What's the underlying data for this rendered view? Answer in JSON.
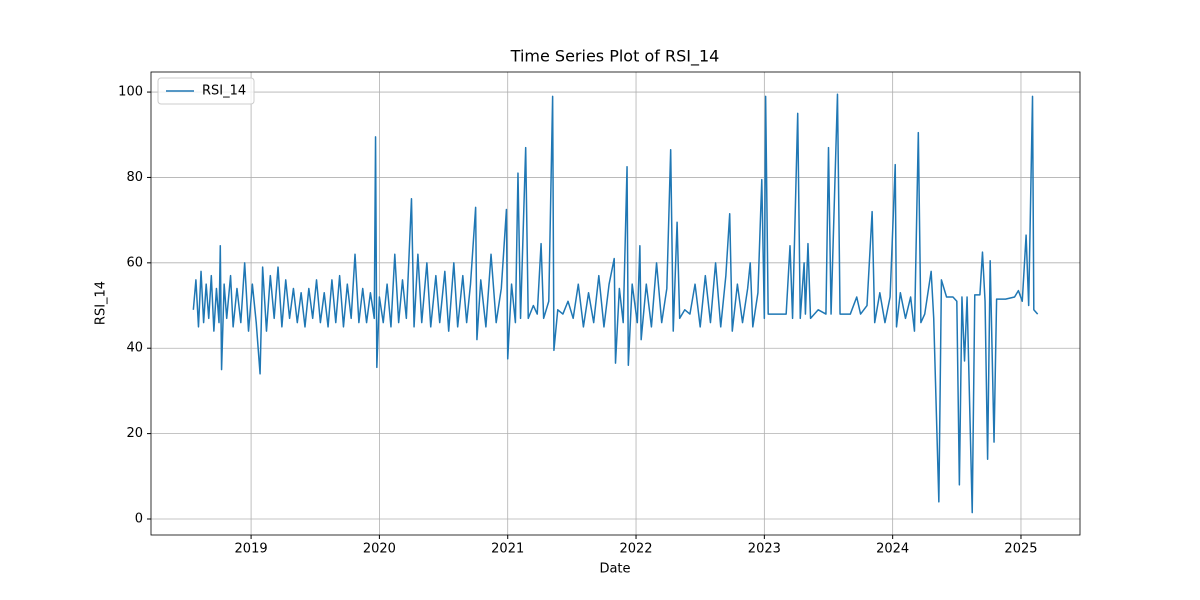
{
  "chart_data": {
    "type": "line",
    "title": "Time Series Plot of RSI_14",
    "x_label": "Date",
    "y_label": "RSI_14",
    "xlim": [
      2018.22,
      2025.46
    ],
    "ylim": [
      -3.75,
      104.7
    ],
    "xticks": [
      2019,
      2020,
      2021,
      2022,
      2023,
      2024,
      2025
    ],
    "yticks": [
      0,
      20,
      40,
      60,
      80,
      100
    ],
    "grid": true,
    "legend": "upper left",
    "x": [
      2018.55,
      2018.57,
      2018.59,
      2018.61,
      2018.63,
      2018.65,
      2018.67,
      2018.69,
      2018.71,
      2018.73,
      2018.75,
      2018.76,
      2018.77,
      2018.79,
      2018.81,
      2018.84,
      2018.86,
      2018.89,
      2018.92,
      2018.95,
      2018.98,
      2019.01,
      2019.04,
      2019.07,
      2019.09,
      2019.12,
      2019.15,
      2019.18,
      2019.21,
      2019.24,
      2019.27,
      2019.3,
      2019.33,
      2019.36,
      2019.39,
      2019.42,
      2019.45,
      2019.48,
      2019.51,
      2019.54,
      2019.57,
      2019.6,
      2019.63,
      2019.66,
      2019.69,
      2019.72,
      2019.75,
      2019.78,
      2019.81,
      2019.84,
      2019.87,
      2019.9,
      2019.93,
      2019.96,
      2019.97,
      2019.98,
      2020.0,
      2020.03,
      2020.06,
      2020.09,
      2020.12,
      2020.15,
      2020.18,
      2020.21,
      2020.25,
      2020.27,
      2020.3,
      2020.33,
      2020.37,
      2020.4,
      2020.44,
      2020.47,
      2020.51,
      2020.54,
      2020.58,
      2020.61,
      2020.65,
      2020.68,
      2020.71,
      2020.75,
      2020.76,
      2020.79,
      2020.83,
      2020.87,
      2020.91,
      2020.95,
      2020.99,
      2021.0,
      2021.03,
      2021.06,
      2021.08,
      2021.1,
      2021.14,
      2021.16,
      2021.2,
      2021.23,
      2021.26,
      2021.28,
      2021.32,
      2021.35,
      2021.36,
      2021.39,
      2021.43,
      2021.47,
      2021.51,
      2021.55,
      2021.59,
      2021.63,
      2021.67,
      2021.71,
      2021.75,
      2021.79,
      2021.83,
      2021.84,
      2021.87,
      2021.9,
      2021.93,
      2021.94,
      2021.97,
      2022.01,
      2022.03,
      2022.04,
      2022.08,
      2022.12,
      2022.16,
      2022.2,
      2022.24,
      2022.27,
      2022.29,
      2022.32,
      2022.34,
      2022.38,
      2022.42,
      2022.46,
      2022.5,
      2022.54,
      2022.58,
      2022.62,
      2022.66,
      2022.7,
      2022.73,
      2022.75,
      2022.79,
      2022.83,
      2022.87,
      2022.89,
      2022.91,
      2022.95,
      2022.98,
      2023.0,
      2023.01,
      2023.03,
      2023.1,
      2023.17,
      2023.2,
      2023.22,
      2023.26,
      2023.28,
      2023.31,
      2023.32,
      2023.34,
      2023.36,
      2023.42,
      2023.48,
      2023.5,
      2023.52,
      2023.57,
      2023.59,
      2023.67,
      2023.72,
      2023.75,
      2023.8,
      2023.84,
      2023.86,
      2023.9,
      2023.94,
      2023.98,
      2024.02,
      2024.03,
      2024.06,
      2024.1,
      2024.14,
      2024.17,
      2024.2,
      2024.22,
      2024.25,
      2024.3,
      2024.32,
      2024.36,
      2024.38,
      2024.42,
      2024.47,
      2024.5,
      2024.52,
      2024.54,
      2024.56,
      2024.58,
      2024.62,
      2024.64,
      2024.68,
      2024.7,
      2024.72,
      2024.74,
      2024.76,
      2024.79,
      2024.81,
      2024.88,
      2024.95,
      2024.98,
      2025.01,
      2025.04,
      2025.06,
      2025.09,
      2025.1,
      2025.13
    ],
    "series": [
      {
        "name": "RSI_14",
        "color": "#1f77b4",
        "values": [
          49,
          56,
          45,
          58,
          46,
          55,
          47,
          57,
          44,
          54,
          46,
          64,
          35,
          55,
          47,
          57,
          45,
          54,
          46,
          60,
          44,
          55,
          46,
          34,
          59,
          44,
          57,
          47,
          59,
          45,
          56,
          47,
          54,
          46,
          53,
          45,
          54,
          47,
          56,
          46,
          53,
          45,
          56,
          46,
          57,
          45,
          55,
          47,
          62,
          46,
          54,
          46,
          53,
          47,
          89.5,
          35.5,
          52,
          46,
          55,
          45,
          62,
          46,
          56,
          47,
          75,
          45,
          62,
          46,
          60,
          45,
          57,
          46,
          58,
          44,
          60,
          45,
          57,
          46,
          55,
          73,
          42,
          56,
          45,
          62,
          46,
          54,
          72.5,
          37.5,
          55,
          46,
          81,
          47,
          87,
          47,
          50,
          48,
          64.5,
          47,
          51,
          99,
          39.5,
          49,
          48,
          51,
          47,
          55,
          45,
          53,
          46,
          57,
          45,
          55,
          61,
          36.5,
          54,
          46,
          82.5,
          36,
          55,
          46,
          64,
          42,
          55,
          45,
          60,
          46,
          54,
          86.5,
          44,
          69.5,
          47,
          49,
          48,
          55,
          45,
          57,
          46,
          60,
          45,
          57,
          71.5,
          44,
          55,
          46,
          54,
          60,
          45,
          53,
          79.5,
          47,
          99,
          48,
          48,
          48,
          64,
          47,
          95,
          47,
          60,
          48,
          64.5,
          47,
          49,
          48,
          87,
          48,
          99.5,
          48,
          48,
          52,
          48,
          50,
          72,
          46,
          53,
          46,
          52,
          83,
          45,
          53,
          47,
          52,
          44,
          90.5,
          46,
          48,
          58,
          47,
          4,
          56,
          52,
          52,
          51,
          8,
          52,
          37,
          52,
          1.5,
          52.5,
          52.5,
          62.5,
          51,
          14,
          60.5,
          18,
          51.5,
          51.5,
          52,
          53.5,
          51,
          66.5,
          50,
          99,
          49,
          48
        ]
      }
    ]
  }
}
